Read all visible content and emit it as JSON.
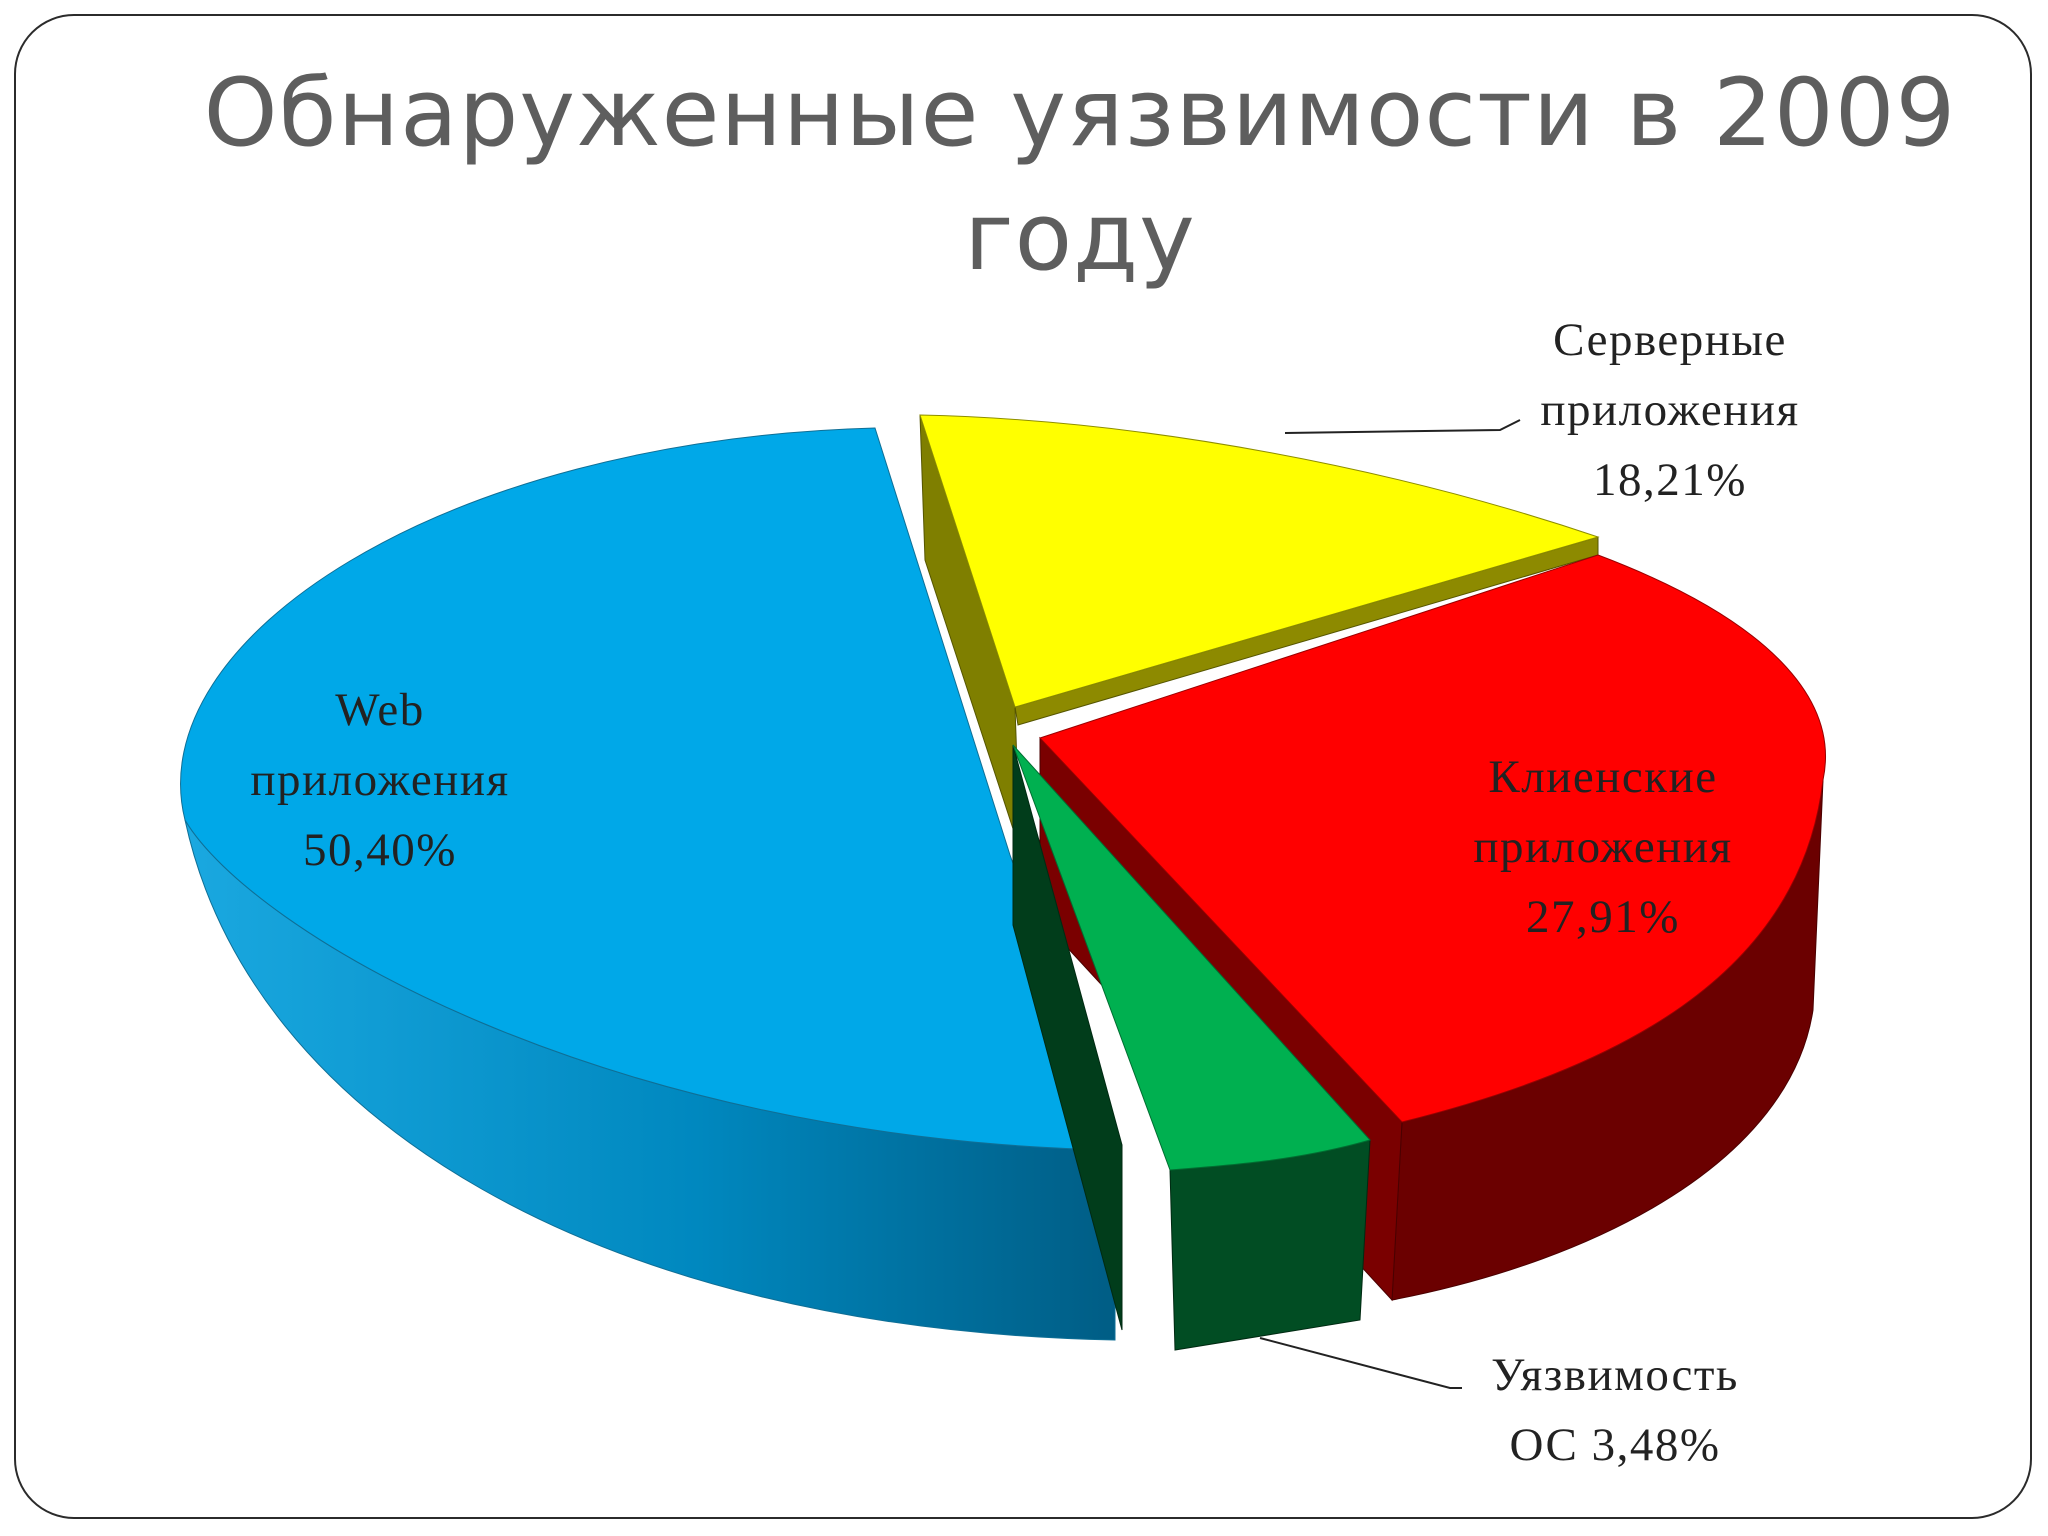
{
  "title_line1": "Обнаруженные уязвимости в 2009",
  "title_line2": "году",
  "chart_data": {
    "type": "pie",
    "title": "Обнаруженные уязвимости в 2009 году",
    "slices": [
      {
        "name": "Web приложения",
        "label_lines": [
          "Web",
          "приложения",
          "50,40%"
        ],
        "value": 50.4,
        "color": "#00a8e8"
      },
      {
        "name": "Серверные приложения",
        "label_lines": [
          "Серверные",
          "приложения",
          "18,21%"
        ],
        "value": 18.21,
        "color": "#ffff00"
      },
      {
        "name": "Клиенские приложения",
        "label_lines": [
          "Клиенские",
          "приложения",
          "27,91%"
        ],
        "value": 27.91,
        "color": "#ff0000"
      },
      {
        "name": "Уязвимость ОС",
        "label_lines": [
          "Уязвимость",
          "ОС 3,48%"
        ],
        "value": 3.48,
        "color": "#00b050"
      }
    ],
    "style": "3d-exploded"
  }
}
